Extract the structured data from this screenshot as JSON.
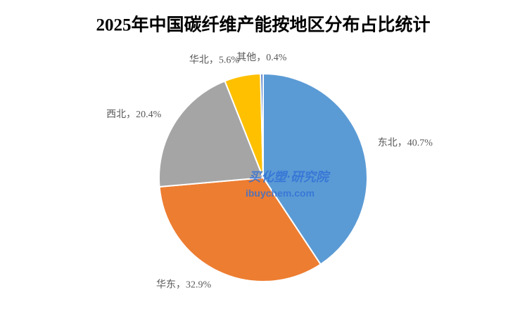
{
  "chart_data": {
    "type": "pie",
    "title": "2025年中国碳纤维产能按地区分布占比统计",
    "values": [
      40.7,
      32.9,
      20.4,
      5.6,
      0.4
    ],
    "value_labels": [
      "东北，40.7%",
      "华东，32.9%",
      "西北，20.4%",
      "华北，5.6%",
      "其他，0.4%"
    ],
    "colors": [
      "#5b9bd5",
      "#ed7d31",
      "#a5a5a5",
      "#ffc000",
      "#4472c4"
    ],
    "watermark": [
      "买化塑·研究院",
      "ibuychem.com"
    ]
  }
}
